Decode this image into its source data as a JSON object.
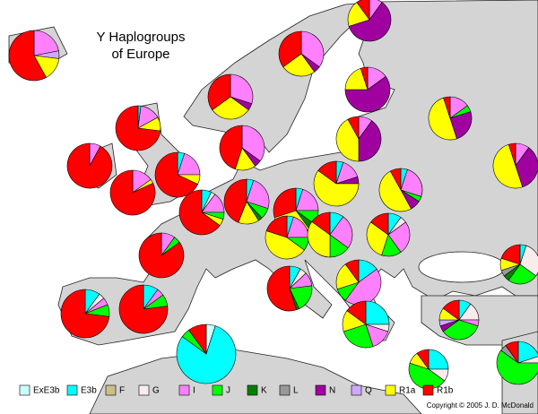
{
  "title_lines": [
    "Y Haplogroups",
    "of Europe"
  ],
  "legend": [
    {
      "name": "ExE3b",
      "color": "#ccffff"
    },
    {
      "name": "E3b",
      "color": "#00ffff"
    },
    {
      "name": "F",
      "color": "#cbbf8a"
    },
    {
      "name": "G",
      "color": "#f8ecec"
    },
    {
      "name": "I",
      "color": "#ff80ff"
    },
    {
      "name": "J",
      "color": "#00ff00"
    },
    {
      "name": "K",
      "color": "#008000"
    },
    {
      "name": "L",
      "color": "#999999"
    },
    {
      "name": "N",
      "color": "#a000a0"
    },
    {
      "name": "Q",
      "color": "#d0a8ff"
    },
    {
      "name": "R1a",
      "color": "#ffff00"
    },
    {
      "name": "R1b",
      "color": "#ff0000"
    }
  ],
  "copyright": "Copyright © 2005  J. D. McDonald",
  "pies": [
    {
      "values": {
        "I": 22,
        "Q": 5,
        "R1a": 15,
        "R1b": 58
      }
    },
    {
      "values": {
        "I": 35,
        "N": 5,
        "R1a": 25,
        "R1b": 35
      }
    },
    {
      "values": {
        "I": 10,
        "N": 60,
        "R1a": 20,
        "R1b": 10
      }
    },
    {
      "values": {
        "I": 15,
        "N": 60,
        "R1a": 20,
        "R1b": 5
      }
    },
    {
      "values": {
        "I": 30,
        "N": 5,
        "R1a": 30,
        "R1b": 35
      }
    },
    {
      "values": {
        "E3b": 2,
        "I": 15,
        "R1a": 10,
        "R1b": 73
      }
    },
    {
      "values": {
        "I": 10,
        "N": 40,
        "R1a": 42,
        "R1b": 8
      }
    },
    {
      "values": {
        "I": 15,
        "N": 25,
        "R1a": 50,
        "R1b": 5,
        "J": 5
      }
    },
    {
      "values": {
        "I": 8,
        "R1b": 92
      }
    },
    {
      "values": {
        "I": 15,
        "R1a": 3,
        "R1b": 82
      }
    },
    {
      "values": {
        "E3b": 5,
        "I": 20,
        "R1a": 7,
        "R1b": 68
      }
    },
    {
      "values": {
        "I": 35,
        "R1a": 15,
        "R1b": 45,
        "N": 5
      }
    },
    {
      "values": {
        "I": 10,
        "N": 35,
        "R1a": 50,
        "R1b": 5
      }
    },
    {
      "values": {
        "E3b": 7,
        "G": 3,
        "I": 15,
        "J": 5,
        "R1a": 5,
        "R1b": 65
      }
    },
    {
      "values": {
        "E3b": 5,
        "I": 25,
        "J": 8,
        "K": 3,
        "R1a": 15,
        "R1b": 44
      }
    },
    {
      "values": {
        "I": 15,
        "N": 5,
        "R1a": 60,
        "R1b": 15,
        "E3b": 5
      }
    },
    {
      "values": {
        "I": 25,
        "N": 8,
        "R1a": 50,
        "R1b": 8,
        "E3b": 5,
        "J": 4
      }
    },
    {
      "values": {
        "E3b": 5,
        "I": 20,
        "J": 10,
        "K": 5,
        "R1a": 30,
        "R1b": 30
      }
    },
    {
      "values": {
        "I": 10,
        "J": 5,
        "R1b": 85
      }
    },
    {
      "values": {
        "E3b": 5,
        "I": 20,
        "J": 10,
        "R1a": 45,
        "R1b": 20
      }
    },
    {
      "values": {
        "E3b": 10,
        "I": 25,
        "J": 15,
        "R1a": 35,
        "R1b": 15
      }
    },
    {
      "values": {
        "E3b": 10,
        "I": 25,
        "J": 15,
        "R1a": 30,
        "R1b": 15,
        "G": 5
      }
    },
    {
      "values": {
        "E3b": 8,
        "G": 5,
        "I": 10,
        "J": 20,
        "K": 2,
        "R1b": 55
      }
    },
    {
      "values": {
        "E3b": 15,
        "I": 45,
        "J": 10,
        "R1a": 20,
        "R1b": 10
      }
    },
    {
      "values": {
        "E3b": 5,
        "G": 30,
        "J": 25,
        "K": 5,
        "L": 5,
        "R1a": 10,
        "R1b": 20
      }
    },
    {
      "values": {
        "E3b": 10,
        "G": 4,
        "I": 5,
        "J": 8,
        "R1b": 73
      }
    },
    {
      "values": {
        "E3b": 10,
        "I": 5,
        "J": 8,
        "R1b": 77
      }
    },
    {
      "values": {
        "ExE3b": 5,
        "E3b": 80,
        "J": 5,
        "R1b": 10
      }
    },
    {
      "values": {
        "E3b": 25,
        "G": 5,
        "I": 15,
        "J": 25,
        "R1a": 15,
        "R1b": 15
      }
    },
    {
      "values": {
        "E3b": 10,
        "G": 15,
        "I": 5,
        "J": 35,
        "N": 5,
        "Q": 5,
        "R1a": 10,
        "R1b": 15
      }
    },
    {
      "values": {
        "E3b": 25,
        "G": 10,
        "J": 45,
        "R1a": 10,
        "R1b": 10
      }
    },
    {
      "values": {
        "E3b": 20,
        "G": 5,
        "J": 60,
        "L": 5,
        "R1b": 10
      }
    }
  ]
}
